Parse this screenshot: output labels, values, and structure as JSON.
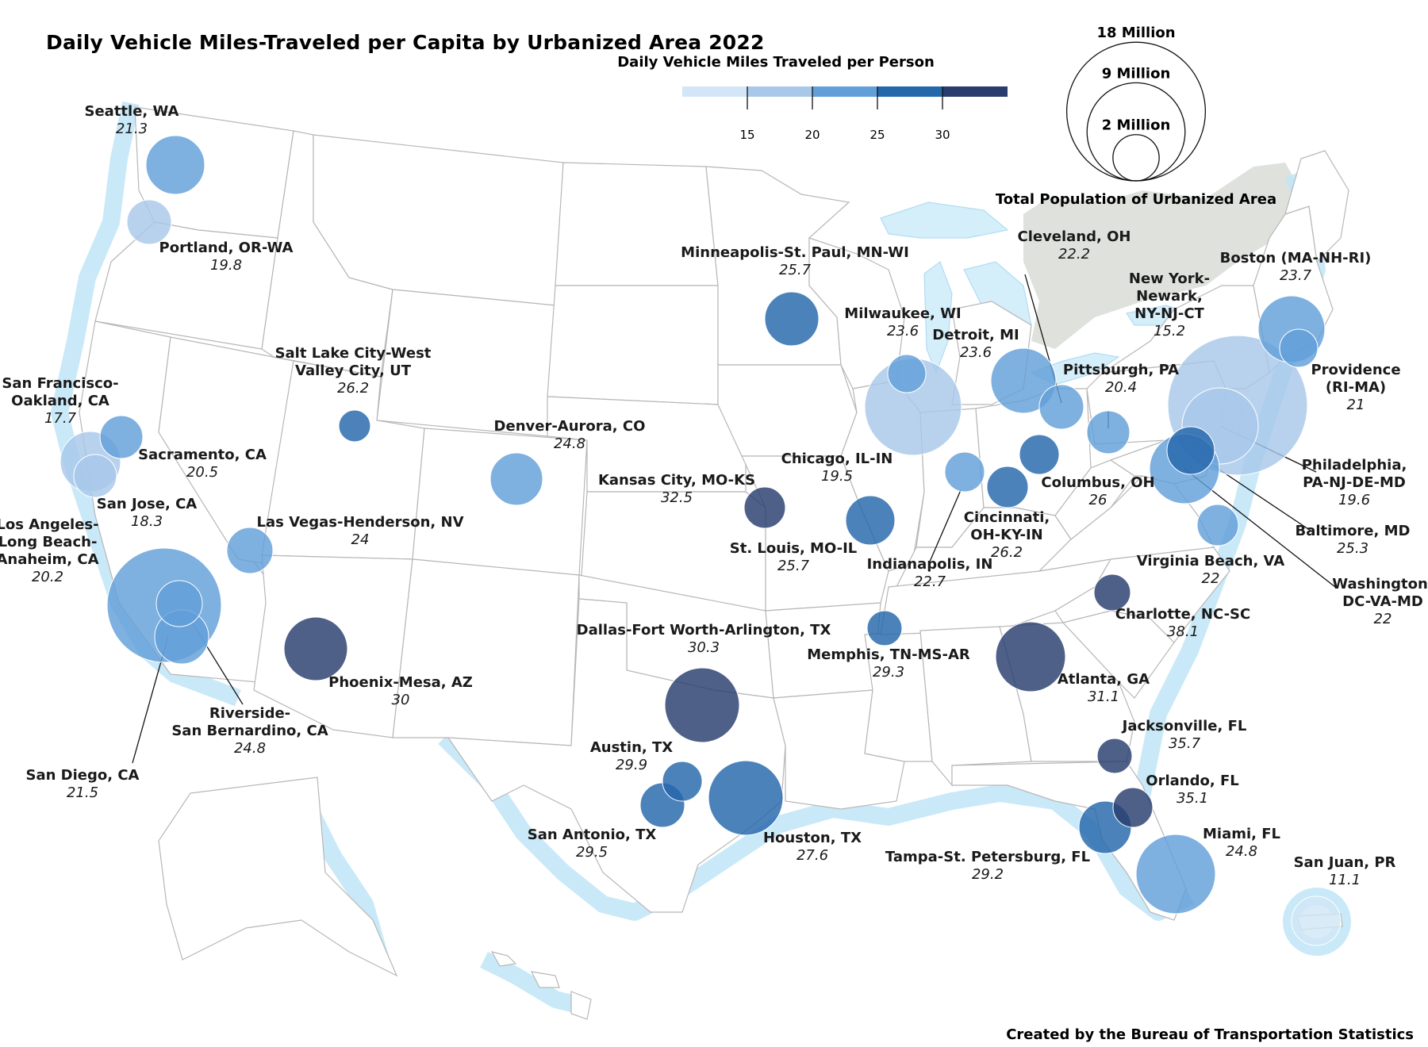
{
  "title": "Daily Vehicle Miles-Traveled per Capita by Urbanized Area 2022",
  "credit": "Created by the Bureau of Transportation Statistics",
  "color_legend": {
    "title": "Daily Vehicle Miles Traveled per Person",
    "ticks": [
      "15",
      "20",
      "25",
      "30"
    ],
    "bins": [
      {
        "color": "#d2e6f7"
      },
      {
        "color": "#a8c8ea"
      },
      {
        "color": "#629fd9"
      },
      {
        "color": "#2567ab"
      },
      {
        "color": "#283d6e"
      }
    ]
  },
  "size_legend": {
    "title": "Total Population of Urbanized Area",
    "labels": [
      "18 Million",
      "9 Million",
      "2 Million"
    ],
    "populations_million": [
      18,
      9,
      2
    ]
  },
  "colors": {
    "water_glow": "#bfe5f7",
    "bubble_stroke": "#ffffff",
    "canada": "#dfe2dc"
  },
  "cities": [
    {
      "name": "Seattle, WA",
      "value": "21.3"
    },
    {
      "name": "Portland, OR-WA",
      "value": "19.8"
    },
    {
      "name": "San Francisco-Oakland, CA",
      "value": "17.7"
    },
    {
      "name": "Sacramento, CA",
      "value": "20.5"
    },
    {
      "name": "San Jose, CA",
      "value": "18.3"
    },
    {
      "name": "Los Angeles-Long Beach-Anaheim, CA",
      "value": "20.2"
    },
    {
      "name": "Riverside-San Bernardino, CA",
      "value": "24.8"
    },
    {
      "name": "San Diego, CA",
      "value": "21.5"
    },
    {
      "name": "Las Vegas-Henderson, NV",
      "value": "24"
    },
    {
      "name": "Phoenix-Mesa, AZ",
      "value": "30"
    },
    {
      "name": "Salt Lake City-West Valley City, UT",
      "value": "26.2"
    },
    {
      "name": "Denver-Aurora, CO",
      "value": "24.8"
    },
    {
      "name": "Minneapolis-St. Paul, MN-WI",
      "value": "25.7"
    },
    {
      "name": "Kansas City, MO-KS",
      "value": "32.5"
    },
    {
      "name": "Dallas-Fort Worth-Arlington, TX",
      "value": "30.3"
    },
    {
      "name": "Austin, TX",
      "value": "29.9"
    },
    {
      "name": "San Antonio, TX",
      "value": "29.5"
    },
    {
      "name": "Houston, TX",
      "value": "27.6"
    },
    {
      "name": "Milwaukee, WI",
      "value": "23.6"
    },
    {
      "name": "Chicago, IL-IN",
      "value": "19.5"
    },
    {
      "name": "St. Louis, MO-IL",
      "value": "25.7"
    },
    {
      "name": "Memphis, TN-MS-AR",
      "value": "29.3"
    },
    {
      "name": "Detroit, MI",
      "value": "23.6"
    },
    {
      "name": "Cleveland, OH",
      "value": "22.2"
    },
    {
      "name": "Pittsburgh, PA",
      "value": "20.4"
    },
    {
      "name": "Columbus, OH",
      "value": "26"
    },
    {
      "name": "Cincinnati, OH-KY-IN",
      "value": "26.2"
    },
    {
      "name": "Indianapolis, IN",
      "value": "22.7"
    },
    {
      "name": "New York-Newark, NY-NJ-CT",
      "value": "15.2"
    },
    {
      "name": "Boston (MA-NH-RI)",
      "value": "23.7"
    },
    {
      "name": "Providence (RI-MA)",
      "value": "21"
    },
    {
      "name": "Philadelphia, PA-NJ-DE-MD",
      "value": "19.6"
    },
    {
      "name": "Baltimore, MD",
      "value": "25.3"
    },
    {
      "name": "Washington, DC-VA-MD",
      "value": "22"
    },
    {
      "name": "Virginia Beach, VA",
      "value": "22"
    },
    {
      "name": "Charlotte, NC-SC",
      "value": "38.1"
    },
    {
      "name": "Atlanta, GA",
      "value": "31.1"
    },
    {
      "name": "Jacksonville, FL",
      "value": "35.7"
    },
    {
      "name": "Orlando, FL",
      "value": "35.1"
    },
    {
      "name": "Tampa-St. Petersburg, FL",
      "value": "29.2"
    },
    {
      "name": "Miami, FL",
      "value": "24.8"
    },
    {
      "name": "San Juan, PR",
      "value": "11.1"
    }
  ]
}
